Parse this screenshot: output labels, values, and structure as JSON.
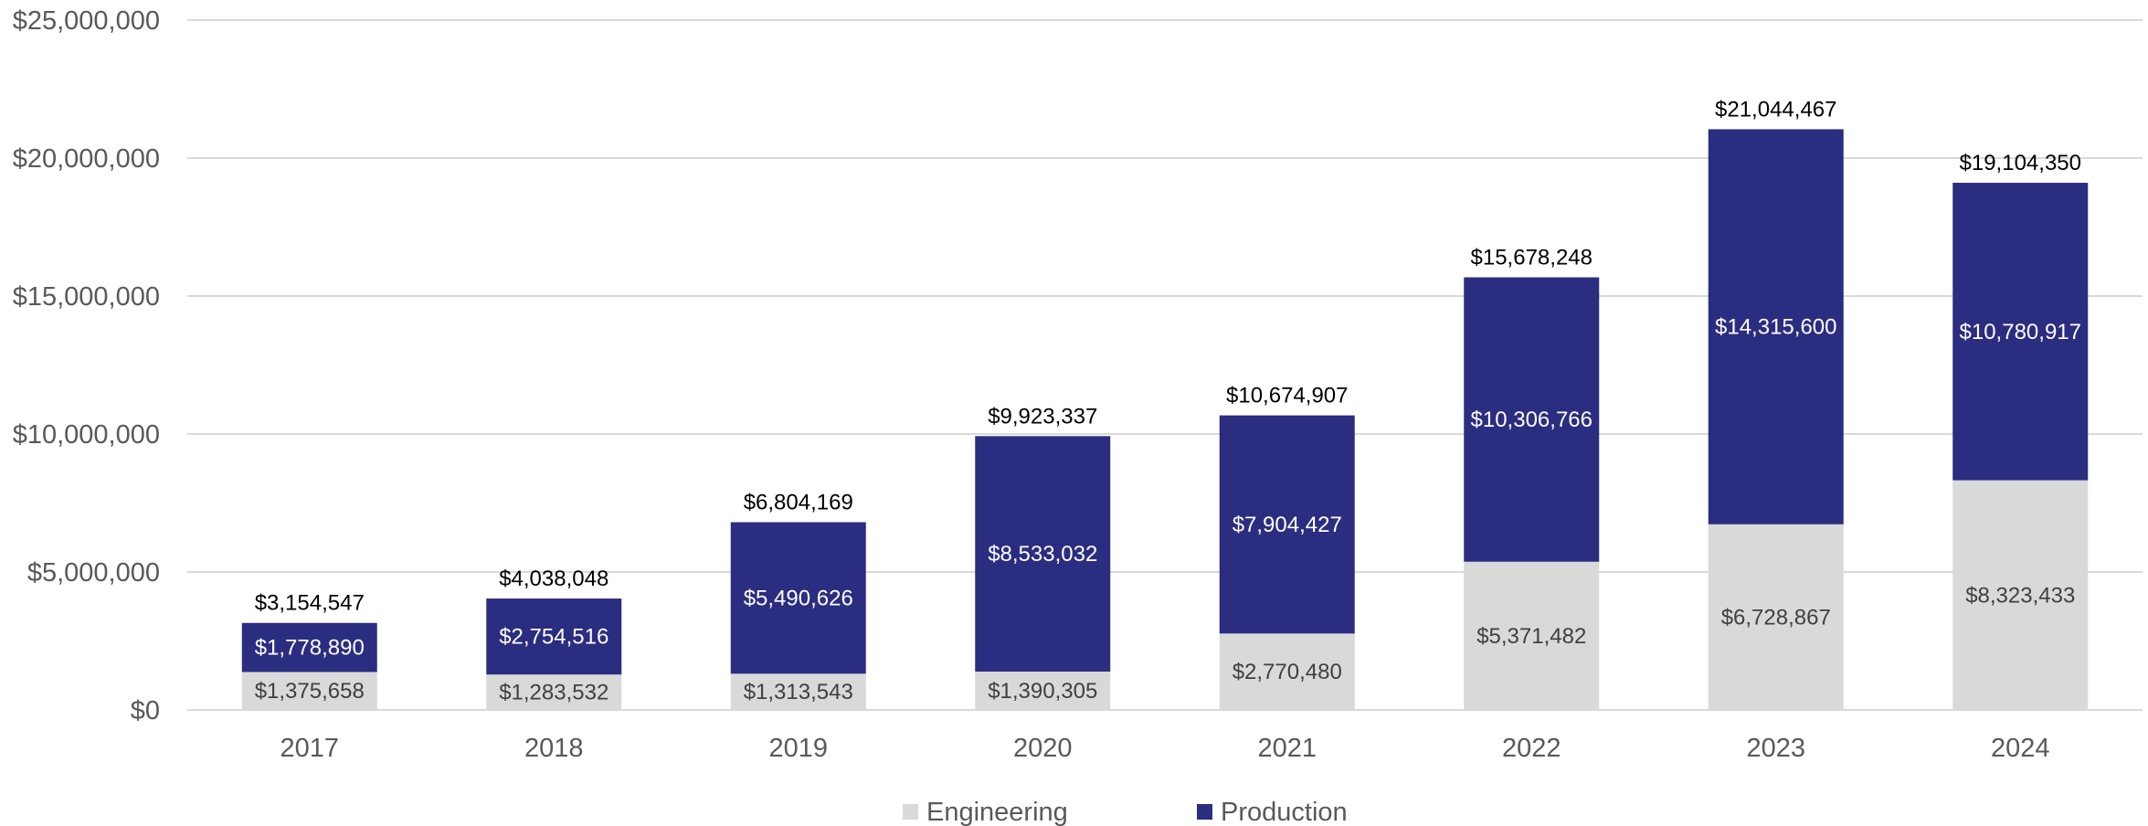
{
  "chart_data": {
    "type": "bar",
    "stacked": true,
    "title": "",
    "xlabel": "",
    "ylabel": "",
    "ylim": [
      0,
      25000000
    ],
    "y_ticks": [
      0,
      5000000,
      10000000,
      15000000,
      20000000,
      25000000
    ],
    "y_tick_labels": [
      "$0",
      "$5,000,000",
      "$10,000,000",
      "$15,000,000",
      "$20,000,000",
      "$25,000,000"
    ],
    "grid": true,
    "legend_position": "bottom",
    "categories": [
      "2017",
      "2018",
      "2019",
      "2020",
      "2021",
      "2022",
      "2023",
      "2024"
    ],
    "series": [
      {
        "name": "Engineering",
        "color": "#d9d9d9",
        "values": [
          1375658,
          1283532,
          1313543,
          1390305,
          2770480,
          5371482,
          6728867,
          8323433
        ],
        "labels": [
          "$1,375,658",
          "$1,283,532",
          "$1,313,543",
          "$1,390,305",
          "$2,770,480",
          "$5,371,482",
          "$6,728,867",
          "$8,323,433"
        ]
      },
      {
        "name": "Production",
        "color": "#2b2d80",
        "values": [
          1778890,
          2754516,
          5490626,
          8533032,
          7904427,
          10306766,
          14315600,
          10780917
        ],
        "labels": [
          "$1,778,890",
          "$2,754,516",
          "$5,490,626",
          "$8,533,032",
          "$7,904,427",
          "$10,306,766",
          "$14,315,600",
          "$10,780,917"
        ]
      }
    ],
    "totals": [
      3154547,
      4038048,
      6804169,
      9923337,
      10674907,
      15678248,
      21044467,
      19104350
    ],
    "total_labels": [
      "$3,154,547",
      "$4,038,048",
      "$6,804,169",
      "$9,923,337",
      "$10,674,907",
      "$15,678,248",
      "$21,044,467",
      "$19,104,350"
    ]
  }
}
